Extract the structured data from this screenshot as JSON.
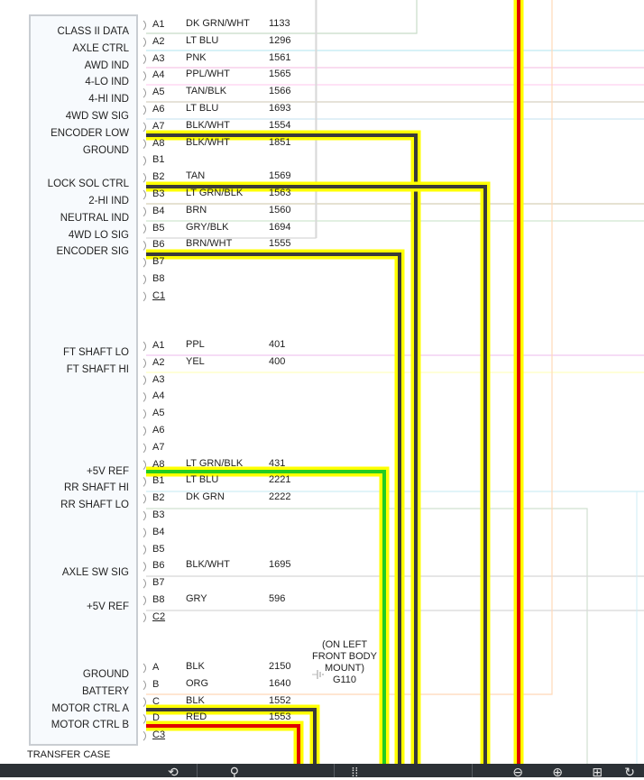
{
  "module": {
    "caption": "TRANSFER CASE"
  },
  "connector1": {
    "signals": [
      {
        "label": "CLASS II DATA",
        "pin": "A1"
      },
      {
        "label": "AXLE CTRL",
        "pin": "A2"
      },
      {
        "label": "AWD IND",
        "pin": "A3"
      },
      {
        "label": "4-LO IND",
        "pin": "A4"
      },
      {
        "label": "4-HI IND",
        "pin": "A5"
      },
      {
        "label": "4WD SW SIG",
        "pin": "A6"
      },
      {
        "label": "ENCODER LOW",
        "pin": "A7"
      },
      {
        "label": "GROUND",
        "pin": "A8"
      },
      {
        "label": "",
        "pin": "B1"
      },
      {
        "label": "LOCK SOL CTRL",
        "pin": "B2"
      },
      {
        "label": "2-HI IND",
        "pin": "B3"
      },
      {
        "label": "NEUTRAL IND",
        "pin": "B4"
      },
      {
        "label": "4WD LO SIG",
        "pin": "B5"
      },
      {
        "label": "ENCODER SIG",
        "pin": "B6"
      },
      {
        "label": "",
        "pin": "B7"
      },
      {
        "label": "",
        "pin": "B8"
      },
      {
        "label": "",
        "pin": "C1"
      }
    ],
    "wires": [
      {
        "pin": "A1",
        "color": "DK GRN/WHT",
        "circuit": "1133"
      },
      {
        "pin": "A2",
        "color": "LT BLU",
        "circuit": "1296"
      },
      {
        "pin": "A3",
        "color": "PNK",
        "circuit": "1561"
      },
      {
        "pin": "A4",
        "color": "PPL/WHT",
        "circuit": "1565"
      },
      {
        "pin": "A5",
        "color": "TAN/BLK",
        "circuit": "1566"
      },
      {
        "pin": "A6",
        "color": "LT BLU",
        "circuit": "1693"
      },
      {
        "pin": "A7",
        "color": "BLK/WHT",
        "circuit": "1554"
      },
      {
        "pin": "A8",
        "color": "BLK/WHT",
        "circuit": "1851"
      },
      {
        "pin": "B2",
        "color": "TAN",
        "circuit": "1569"
      },
      {
        "pin": "B3",
        "color": "LT GRN/BLK",
        "circuit": "1563"
      },
      {
        "pin": "B4",
        "color": "BRN",
        "circuit": "1560"
      },
      {
        "pin": "B5",
        "color": "GRY/BLK",
        "circuit": "1694"
      },
      {
        "pin": "B6",
        "color": "BRN/WHT",
        "circuit": "1555"
      }
    ]
  },
  "connector2": {
    "signals": [
      {
        "label": "FT SHAFT LO",
        "pin": "A1"
      },
      {
        "label": "FT SHAFT HI",
        "pin": "A2"
      },
      {
        "label": "",
        "pin": "A3"
      },
      {
        "label": "",
        "pin": "A4"
      },
      {
        "label": "",
        "pin": "A5"
      },
      {
        "label": "",
        "pin": "A6"
      },
      {
        "label": "",
        "pin": "A7"
      },
      {
        "label": "+5V REF",
        "pin": "A8"
      },
      {
        "label": "RR SHAFT HI",
        "pin": "B1"
      },
      {
        "label": "RR SHAFT LO",
        "pin": "B2"
      },
      {
        "label": "",
        "pin": "B3"
      },
      {
        "label": "",
        "pin": "B4"
      },
      {
        "label": "",
        "pin": "B5"
      },
      {
        "label": "AXLE SW SIG",
        "pin": "B6"
      },
      {
        "label": "",
        "pin": "B7"
      },
      {
        "label": "+5V REF",
        "pin": "B8"
      },
      {
        "label": "",
        "pin": "C2"
      }
    ],
    "wires": [
      {
        "pin": "A1",
        "color": "PPL",
        "circuit": "401"
      },
      {
        "pin": "A2",
        "color": "YEL",
        "circuit": "400"
      },
      {
        "pin": "A8",
        "color": "LT GRN/BLK",
        "circuit": "431"
      },
      {
        "pin": "B1",
        "color": "LT BLU",
        "circuit": "2221"
      },
      {
        "pin": "B2",
        "color": "DK GRN",
        "circuit": "2222"
      },
      {
        "pin": "B6",
        "color": "BLK/WHT",
        "circuit": "1695"
      },
      {
        "pin": "B8",
        "color": "GRY",
        "circuit": "596"
      }
    ]
  },
  "connector3": {
    "signals": [
      {
        "label": "GROUND",
        "pin": "A"
      },
      {
        "label": "BATTERY",
        "pin": "B"
      },
      {
        "label": "MOTOR CTRL A",
        "pin": "C"
      },
      {
        "label": "MOTOR CTRL B",
        "pin": "D"
      },
      {
        "label": "",
        "pin": "C3"
      }
    ],
    "wires": [
      {
        "pin": "A",
        "color": "BLK",
        "circuit": "2150"
      },
      {
        "pin": "B",
        "color": "ORG",
        "circuit": "1640"
      },
      {
        "pin": "C",
        "color": "BLK",
        "circuit": "1552"
      },
      {
        "pin": "D",
        "color": "RED",
        "circuit": "1553"
      }
    ]
  },
  "ground_note": {
    "lines": [
      "(ON LEFT",
      "FRONT BODY",
      "MOUNT)"
    ],
    "ground_id": "G110"
  },
  "highlight_colors": {
    "halo": "#ffff00",
    "black_wire": "#3a3a3a",
    "red_wire": "#e00000",
    "green_wire": "#22cc22"
  },
  "toolbar": {
    "icons": [
      "share-icon",
      "search-icon",
      "layers-icon",
      "zoom-out-icon",
      "zoom-in-icon",
      "grid-icon",
      "rotate-icon"
    ]
  }
}
